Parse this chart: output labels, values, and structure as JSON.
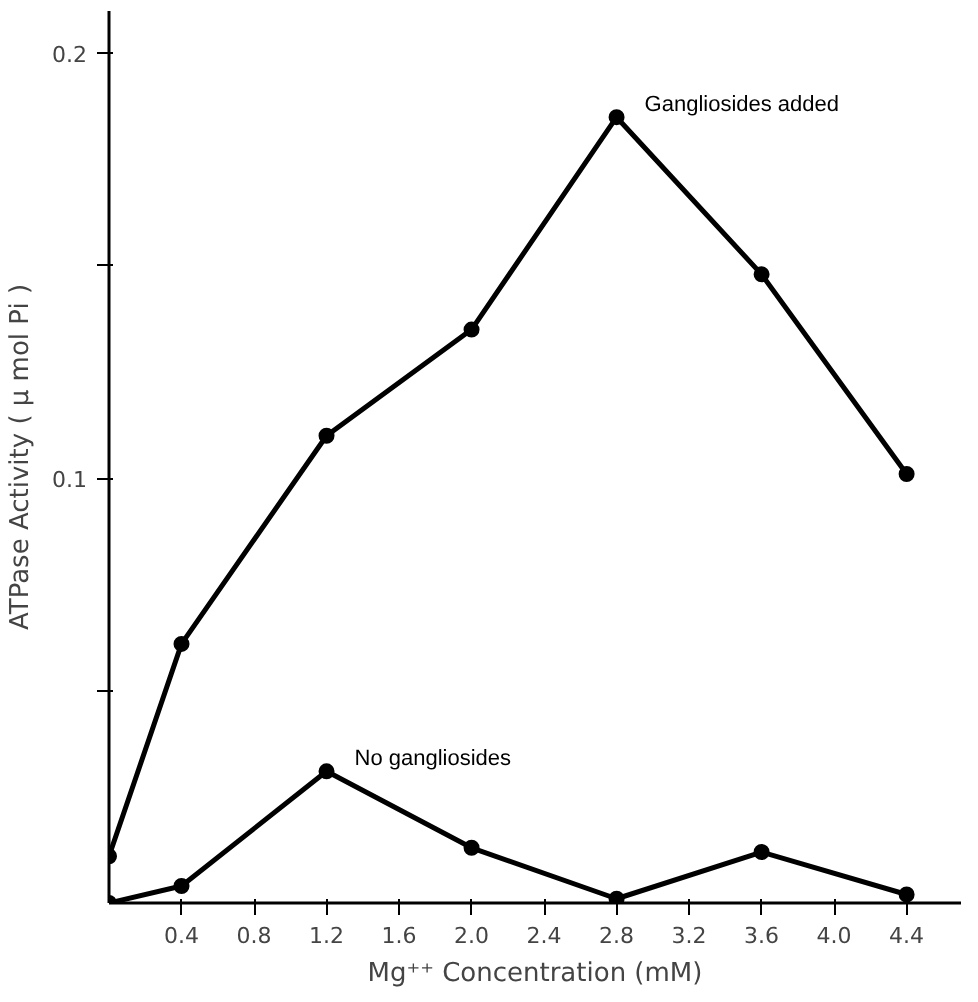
{
  "chart_data": {
    "type": "line",
    "xlabel": "Mg⁺⁺ Concentration (mM)",
    "ylabel": "ATPase Activity ( μ mol Pi )",
    "x": [
      0,
      0.4,
      1.2,
      2.0,
      2.8,
      3.6,
      4.4
    ],
    "series": [
      {
        "name": "Gangliosides added",
        "color": "#000000",
        "values": [
          0.011,
          0.061,
          0.11,
          0.135,
          0.185,
          0.148,
          0.101
        ]
      },
      {
        "name": "No gangliosides",
        "color": "#000000",
        "values": [
          0.0,
          0.004,
          0.031,
          0.013,
          0.001,
          0.012,
          0.002
        ]
      }
    ],
    "xlim": [
      0,
      4.7
    ],
    "ylim": [
      0,
      0.21
    ],
    "xticks": [
      0.4,
      0.8,
      1.2,
      1.6,
      {
        "value": 2.0,
        "label": "2.0"
      },
      2.4,
      2.8,
      3.2,
      3.6,
      {
        "value": 4.0,
        "label": "4.0"
      },
      4.4
    ],
    "yticks": [
      {
        "value": 0.05,
        "label": null
      },
      0.1,
      {
        "value": 0.15,
        "label": null
      },
      0.2
    ],
    "marker": "circle",
    "grid": false
  }
}
